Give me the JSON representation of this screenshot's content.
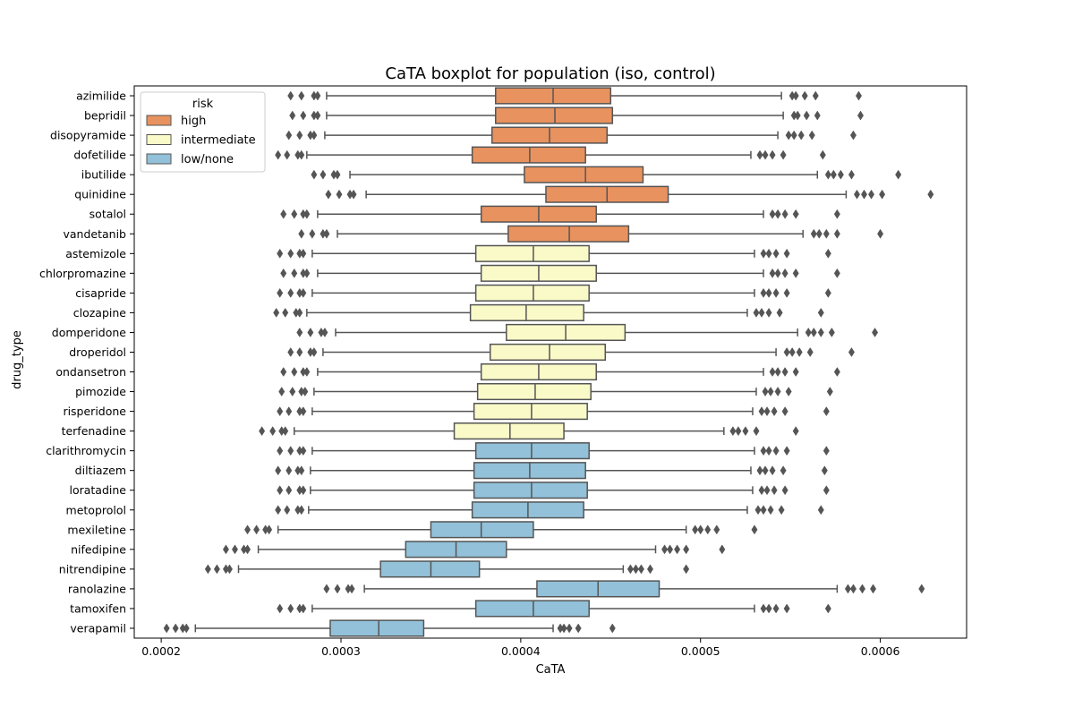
{
  "chart_data": {
    "type": "boxplot",
    "orientation": "horizontal",
    "title": "CaTA boxplot for population (iso, control)",
    "xlabel": "CaTA",
    "ylabel": "drug_type",
    "xlim": [
      0.000185,
      0.000648
    ],
    "x_ticks": [
      0.0002,
      0.0003,
      0.0004,
      0.0005,
      0.0006
    ],
    "x_tick_labels": [
      "0.0002",
      "0.0003",
      "0.0004",
      "0.0005",
      "0.0006"
    ],
    "legend": {
      "title": "risk",
      "position": "top-left",
      "entries": [
        {
          "label": "high",
          "color": "#e8925f"
        },
        {
          "label": "intermediate",
          "color": "#fafac9"
        },
        {
          "label": "low/none",
          "color": "#92c1d9"
        }
      ]
    },
    "colors": {
      "high": "#e8925f",
      "intermediate": "#fafac9",
      "low/none": "#92c1d9",
      "line": "#555555"
    },
    "boxes": [
      {
        "drug": "azimilide",
        "risk": "high",
        "whislo": 0.000292,
        "q1": 0.000386,
        "med": 0.000418,
        "q3": 0.00045,
        "whishi": 0.000545,
        "fliers": [
          0.000272,
          0.000278,
          0.000285,
          0.000287,
          0.000551,
          0.000553,
          0.000558,
          0.000564,
          0.000588
        ]
      },
      {
        "drug": "bepridil",
        "risk": "high",
        "whislo": 0.000292,
        "q1": 0.000386,
        "med": 0.000419,
        "q3": 0.000451,
        "whishi": 0.000546,
        "fliers": [
          0.000273,
          0.000279,
          0.000285,
          0.000287,
          0.000552,
          0.000554,
          0.000559,
          0.000565,
          0.000589
        ]
      },
      {
        "drug": "disopyramide",
        "risk": "high",
        "whislo": 0.000291,
        "q1": 0.000384,
        "med": 0.000416,
        "q3": 0.000448,
        "whishi": 0.000543,
        "fliers": [
          0.000271,
          0.000277,
          0.000283,
          0.000285,
          0.000549,
          0.000552,
          0.000556,
          0.000562,
          0.000585
        ]
      },
      {
        "drug": "dofetilide",
        "risk": "high",
        "whislo": 0.000281,
        "q1": 0.000373,
        "med": 0.000405,
        "q3": 0.000436,
        "whishi": 0.000528,
        "fliers": [
          0.000265,
          0.00027,
          0.000276,
          0.000278,
          0.000533,
          0.000536,
          0.00054,
          0.000546,
          0.000568
        ]
      },
      {
        "drug": "ibutilide",
        "risk": "high",
        "whislo": 0.000305,
        "q1": 0.000402,
        "med": 0.000436,
        "q3": 0.000468,
        "whishi": 0.000565,
        "fliers": [
          0.000285,
          0.00029,
          0.000296,
          0.000298,
          0.000571,
          0.000574,
          0.000578,
          0.000584,
          0.00061
        ]
      },
      {
        "drug": "quinidine",
        "risk": "high",
        "whislo": 0.000314,
        "q1": 0.000414,
        "med": 0.000448,
        "q3": 0.000482,
        "whishi": 0.000581,
        "fliers": [
          0.000293,
          0.000299,
          0.000305,
          0.000307,
          0.000587,
          0.000591,
          0.000595,
          0.000601,
          0.000628
        ]
      },
      {
        "drug": "sotalol",
        "risk": "high",
        "whislo": 0.000287,
        "q1": 0.000378,
        "med": 0.00041,
        "q3": 0.000442,
        "whishi": 0.000535,
        "fliers": [
          0.000268,
          0.000274,
          0.000279,
          0.000281,
          0.00054,
          0.000543,
          0.000547,
          0.000553,
          0.000576
        ]
      },
      {
        "drug": "vandetanib",
        "risk": "high",
        "whislo": 0.000298,
        "q1": 0.000393,
        "med": 0.000427,
        "q3": 0.00046,
        "whishi": 0.000557,
        "fliers": [
          0.000278,
          0.000284,
          0.00029,
          0.000292,
          0.000563,
          0.000566,
          0.00057,
          0.000576,
          0.0006
        ]
      },
      {
        "drug": "astemizole",
        "risk": "intermediate",
        "whislo": 0.000284,
        "q1": 0.000375,
        "med": 0.000407,
        "q3": 0.000438,
        "whishi": 0.00053,
        "fliers": [
          0.000266,
          0.000272,
          0.000277,
          0.000279,
          0.000535,
          0.000538,
          0.000542,
          0.000548,
          0.000571
        ]
      },
      {
        "drug": "chlorpromazine",
        "risk": "intermediate",
        "whislo": 0.000287,
        "q1": 0.000378,
        "med": 0.00041,
        "q3": 0.000442,
        "whishi": 0.000535,
        "fliers": [
          0.000268,
          0.000274,
          0.000279,
          0.000281,
          0.00054,
          0.000543,
          0.000547,
          0.000553,
          0.000576
        ]
      },
      {
        "drug": "cisapride",
        "risk": "intermediate",
        "whislo": 0.000284,
        "q1": 0.000375,
        "med": 0.000407,
        "q3": 0.000438,
        "whishi": 0.00053,
        "fliers": [
          0.000266,
          0.000272,
          0.000277,
          0.000279,
          0.000535,
          0.000538,
          0.000542,
          0.000548,
          0.000571
        ]
      },
      {
        "drug": "clozapine",
        "risk": "intermediate",
        "whislo": 0.000281,
        "q1": 0.000372,
        "med": 0.000403,
        "q3": 0.000435,
        "whishi": 0.000526,
        "fliers": [
          0.000264,
          0.000269,
          0.000275,
          0.000277,
          0.000531,
          0.000534,
          0.000538,
          0.000544,
          0.000567
        ]
      },
      {
        "drug": "domperidone",
        "risk": "intermediate",
        "whislo": 0.000297,
        "q1": 0.000392,
        "med": 0.000425,
        "q3": 0.000458,
        "whishi": 0.000554,
        "fliers": [
          0.000277,
          0.000283,
          0.000289,
          0.000291,
          0.00056,
          0.000563,
          0.000567,
          0.000573,
          0.000597
        ]
      },
      {
        "drug": "droperidol",
        "risk": "intermediate",
        "whislo": 0.00029,
        "q1": 0.000383,
        "med": 0.000416,
        "q3": 0.000447,
        "whishi": 0.000542,
        "fliers": [
          0.000272,
          0.000277,
          0.000283,
          0.000285,
          0.000548,
          0.000551,
          0.000555,
          0.000561,
          0.000584
        ]
      },
      {
        "drug": "ondansetron",
        "risk": "intermediate",
        "whislo": 0.000287,
        "q1": 0.000378,
        "med": 0.00041,
        "q3": 0.000442,
        "whishi": 0.000535,
        "fliers": [
          0.000268,
          0.000274,
          0.000279,
          0.000281,
          0.00054,
          0.000543,
          0.000547,
          0.000553,
          0.000576
        ]
      },
      {
        "drug": "pimozide",
        "risk": "intermediate",
        "whislo": 0.000285,
        "q1": 0.000376,
        "med": 0.000408,
        "q3": 0.000439,
        "whishi": 0.000531,
        "fliers": [
          0.000267,
          0.000273,
          0.000278,
          0.00028,
          0.000536,
          0.000539,
          0.000543,
          0.000549,
          0.000572
        ]
      },
      {
        "drug": "risperidone",
        "risk": "intermediate",
        "whislo": 0.000284,
        "q1": 0.000374,
        "med": 0.000406,
        "q3": 0.000437,
        "whishi": 0.000529,
        "fliers": [
          0.000266,
          0.000271,
          0.000277,
          0.000279,
          0.000534,
          0.000537,
          0.000541,
          0.000547,
          0.00057
        ]
      },
      {
        "drug": "terfenadine",
        "risk": "intermediate",
        "whislo": 0.000274,
        "q1": 0.000363,
        "med": 0.000394,
        "q3": 0.000424,
        "whishi": 0.000513,
        "fliers": [
          0.000256,
          0.000262,
          0.000267,
          0.000269,
          0.000518,
          0.000521,
          0.000525,
          0.000531,
          0.000553
        ]
      },
      {
        "drug": "clarithromycin",
        "risk": "low/none",
        "whislo": 0.000284,
        "q1": 0.000375,
        "med": 0.000406,
        "q3": 0.000438,
        "whishi": 0.00053,
        "fliers": [
          0.000266,
          0.000272,
          0.000277,
          0.000279,
          0.000535,
          0.000538,
          0.000542,
          0.000548,
          0.00057
        ]
      },
      {
        "drug": "diltiazem",
        "risk": "low/none",
        "whislo": 0.000283,
        "q1": 0.000374,
        "med": 0.000405,
        "q3": 0.000436,
        "whishi": 0.000528,
        "fliers": [
          0.000265,
          0.000271,
          0.000276,
          0.000278,
          0.000533,
          0.000536,
          0.00054,
          0.000546,
          0.000569
        ]
      },
      {
        "drug": "loratadine",
        "risk": "low/none",
        "whislo": 0.000283,
        "q1": 0.000374,
        "med": 0.000406,
        "q3": 0.000437,
        "whishi": 0.000529,
        "fliers": [
          0.000266,
          0.000271,
          0.000277,
          0.000279,
          0.000534,
          0.000537,
          0.000541,
          0.000547,
          0.00057
        ]
      },
      {
        "drug": "metoprolol",
        "risk": "low/none",
        "whislo": 0.000282,
        "q1": 0.000373,
        "med": 0.000404,
        "q3": 0.000435,
        "whishi": 0.000526,
        "fliers": [
          0.000265,
          0.00027,
          0.000276,
          0.000278,
          0.000532,
          0.000535,
          0.000539,
          0.000545,
          0.000567
        ]
      },
      {
        "drug": "mexiletine",
        "risk": "low/none",
        "whislo": 0.000265,
        "q1": 0.00035,
        "med": 0.000378,
        "q3": 0.000407,
        "whishi": 0.000492,
        "fliers": [
          0.000248,
          0.000253,
          0.000258,
          0.00026,
          0.000497,
          0.0005,
          0.000504,
          0.000509,
          0.00053
        ]
      },
      {
        "drug": "nifedipine",
        "risk": "low/none",
        "whislo": 0.000254,
        "q1": 0.000336,
        "med": 0.000364,
        "q3": 0.000392,
        "whishi": 0.000475,
        "fliers": [
          0.000236,
          0.000241,
          0.000246,
          0.000248,
          0.00048,
          0.000483,
          0.000487,
          0.000492,
          0.000512
        ]
      },
      {
        "drug": "nitrendipine",
        "risk": "low/none",
        "whislo": 0.000243,
        "q1": 0.000322,
        "med": 0.00035,
        "q3": 0.000377,
        "whishi": 0.000457,
        "fliers": [
          0.000226,
          0.000231,
          0.000236,
          0.000238,
          0.000461,
          0.000464,
          0.000467,
          0.000472,
          0.000492
        ]
      },
      {
        "drug": "ranolazine",
        "risk": "low/none",
        "whislo": 0.000313,
        "q1": 0.000409,
        "med": 0.000443,
        "q3": 0.000477,
        "whishi": 0.000576,
        "fliers": [
          0.000292,
          0.000298,
          0.000304,
          0.000306,
          0.000582,
          0.000585,
          0.00059,
          0.000596,
          0.000623
        ]
      },
      {
        "drug": "tamoxifen",
        "risk": "low/none",
        "whislo": 0.000284,
        "q1": 0.000375,
        "med": 0.000407,
        "q3": 0.000438,
        "whishi": 0.00053,
        "fliers": [
          0.000266,
          0.000272,
          0.000277,
          0.000279,
          0.000535,
          0.000538,
          0.000542,
          0.000548,
          0.000571
        ]
      },
      {
        "drug": "verapamil",
        "risk": "low/none",
        "whislo": 0.000219,
        "q1": 0.000294,
        "med": 0.000321,
        "q3": 0.000346,
        "whishi": 0.000418,
        "fliers": [
          0.000203,
          0.000208,
          0.000212,
          0.000214,
          0.000422,
          0.000424,
          0.000427,
          0.000432,
          0.000451
        ]
      }
    ]
  }
}
